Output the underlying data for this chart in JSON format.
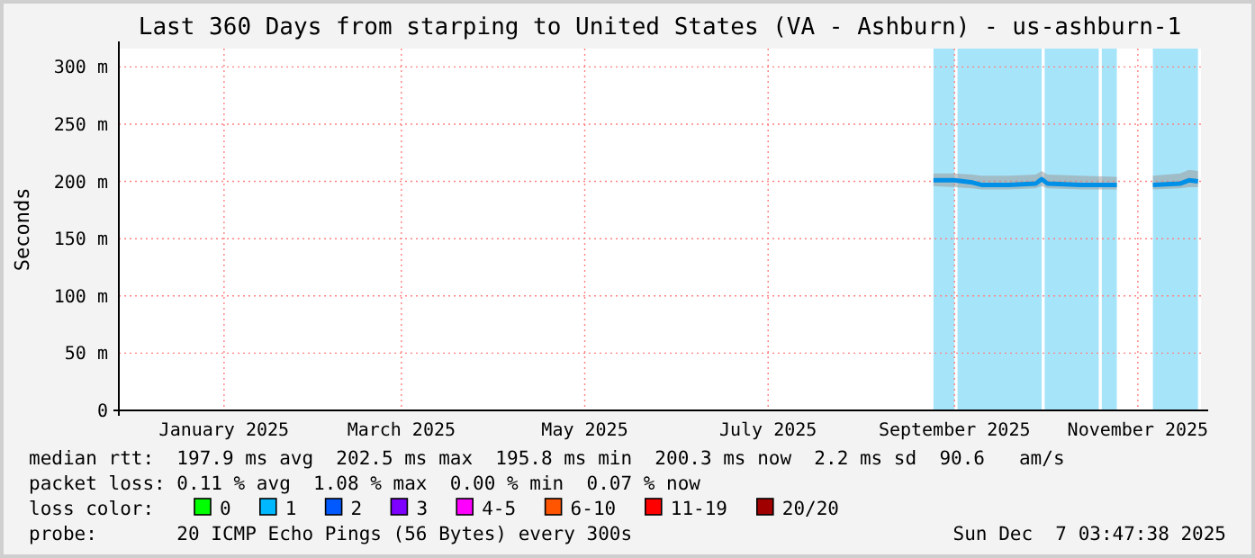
{
  "chart_data": {
    "type": "line",
    "title": "Last 360 Days from starping to United States (VA - Ashburn) - us-ashburn-1",
    "ylabel": "Seconds",
    "xlim": [
      "2024-12-12",
      "2025-12-07"
    ],
    "xticks": [
      {
        "value": "2025-01-16",
        "label": "January 2025"
      },
      {
        "value": "2025-03-16",
        "label": "March 2025"
      },
      {
        "value": "2025-05-16",
        "label": "May 2025"
      },
      {
        "value": "2025-07-16",
        "label": "July 2025"
      },
      {
        "value": "2025-09-16",
        "label": "September 2025"
      },
      {
        "value": "2025-11-16",
        "label": "November 2025"
      }
    ],
    "ylim": [
      0,
      316
    ],
    "yticks": [
      0,
      {
        "value": 50,
        "label": "50 m"
      },
      {
        "value": 100,
        "label": "100 m"
      },
      {
        "value": 150,
        "label": "150 m"
      },
      {
        "value": 200,
        "label": "200 m"
      },
      {
        "value": 250,
        "label": "250 m"
      },
      {
        "value": 300,
        "label": "300 m"
      }
    ],
    "grid": true,
    "legend": "bottom",
    "legend_title": "loss color:",
    "bands": [
      {
        "axis": "x",
        "from": "2025-09-09",
        "to": "2025-09-16",
        "color": "#a6e4fa"
      },
      {
        "axis": "x",
        "from": "2025-09-17",
        "to": "2025-10-15",
        "color": "#a6e4fa"
      },
      {
        "axis": "x",
        "from": "2025-10-16",
        "to": "2025-11-03",
        "color": "#a6e4fa"
      },
      {
        "axis": "x",
        "from": "2025-11-04",
        "to": "2025-11-09",
        "color": "#a6e4fa"
      },
      {
        "axis": "x",
        "from": "2025-11-21",
        "to": "2025-12-06",
        "color": "#a6e4fa"
      }
    ],
    "series": [
      {
        "color": "#0090e8",
        "x": [
          "2025-09-09",
          "2025-09-16",
          "2025-09-22",
          "2025-09-25",
          "2025-10-04",
          "2025-10-13",
          "2025-10-15",
          "2025-10-17",
          "2025-10-28",
          "2025-11-09",
          "2025-11-15",
          "2025-11-21",
          "2025-11-30",
          "2025-12-03",
          "2025-12-06"
        ],
        "values": [
          201,
          201,
          199,
          197,
          197,
          198,
          202,
          198,
          197,
          197,
          null,
          197,
          198,
          201,
          200
        ],
        "lower": [
          196,
          195,
          194,
          193,
          193,
          194,
          196,
          194,
          193,
          193,
          null,
          193,
          194,
          195,
          195
        ],
        "upper": [
          207,
          207,
          206,
          205,
          205,
          206,
          209,
          206,
          205,
          204,
          null,
          205,
          207,
          210,
          209
        ]
      },
      {
        "name": "0",
        "color": "#00ff00"
      },
      {
        "name": "1",
        "color": "#00b8ff"
      },
      {
        "name": "2",
        "color": "#0059ff"
      },
      {
        "name": "3",
        "color": "#7e00ff"
      },
      {
        "name": "4-5",
        "color": "#ff00ff"
      },
      {
        "name": "6-10",
        "color": "#ff5500"
      },
      {
        "name": "11-19",
        "color": "#ff0000"
      },
      {
        "name": "20/20",
        "color": "#a10000"
      }
    ],
    "annotations": [
      "median rtt:  197.9 ms avg  202.5 ms max  195.8 ms min  200.3 ms now  2.2 ms sd  90.6   am/s",
      "packet loss: 0.11 % avg  1.08 % max  0.00 % min  0.07 % now",
      "probe:       20 ICMP Echo Pings (56 Bytes) every 300s",
      "Sun Dec  7 03:47:38 2025"
    ]
  }
}
